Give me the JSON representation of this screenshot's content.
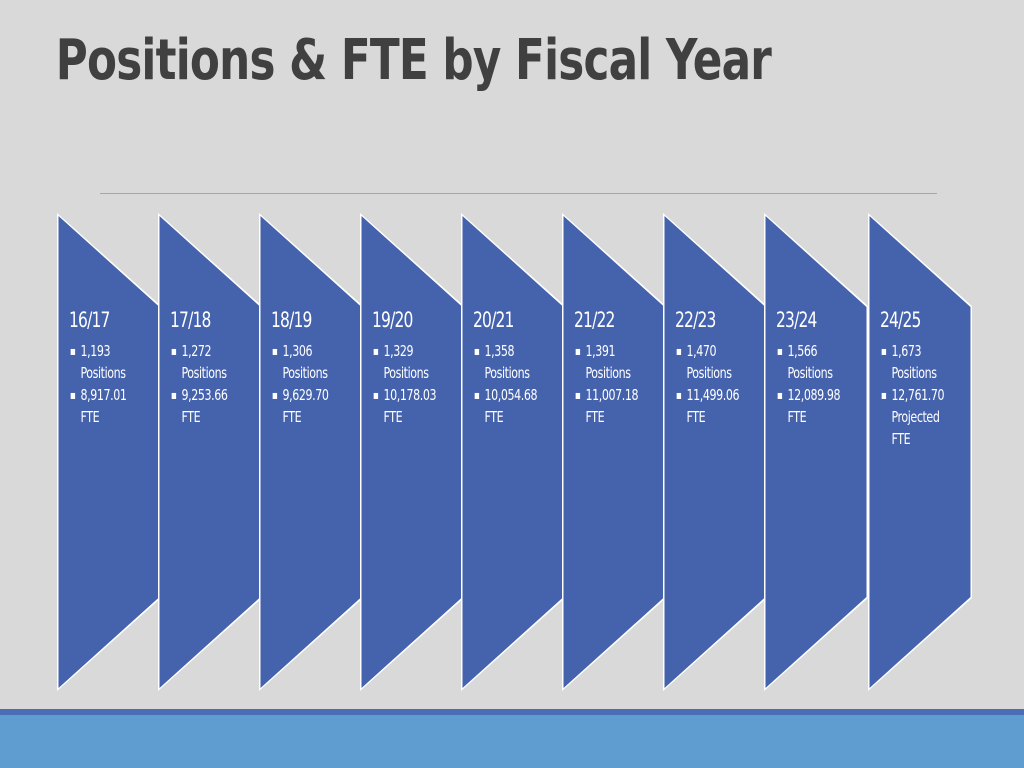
{
  "title": "Positions & FTE by Fiscal Year",
  "colors": {
    "background": "#d9d9d9",
    "chevron_fill": "#4562ad",
    "chevron_border": "#ffffff",
    "footer_dark": "#4a6db5",
    "footer_light": "#5f9dd1",
    "title_text": "#404040"
  },
  "years": [
    {
      "label": "16/17",
      "items": [
        [
          "1,193",
          "Positions"
        ],
        [
          "8,917.01",
          "FTE"
        ]
      ]
    },
    {
      "label": "17/18",
      "items": [
        [
          "1,272",
          "Positions"
        ],
        [
          "9,253.66",
          "FTE"
        ]
      ]
    },
    {
      "label": "18/19",
      "items": [
        [
          "1,306",
          "Positions"
        ],
        [
          "9,629.70",
          "FTE"
        ]
      ]
    },
    {
      "label": "19/20",
      "items": [
        [
          "1,329",
          "Positions"
        ],
        [
          "10,178.03",
          "FTE"
        ]
      ]
    },
    {
      "label": "20/21",
      "items": [
        [
          "1,358",
          "Positions"
        ],
        [
          "10,054.68",
          "FTE"
        ]
      ]
    },
    {
      "label": "21/22",
      "items": [
        [
          "1,391",
          "Positions"
        ],
        [
          "11,007.18",
          "FTE"
        ]
      ]
    },
    {
      "label": "22/23",
      "items": [
        [
          "1,470",
          "Positions"
        ],
        [
          "11,499.06",
          "FTE"
        ]
      ]
    },
    {
      "label": "23/24",
      "items": [
        [
          "1,566",
          "Positions"
        ],
        [
          "12,089.98",
          "FTE"
        ]
      ]
    },
    {
      "label": "24/25",
      "items": [
        [
          "1,673",
          "Positions"
        ],
        [
          " 12,761.70",
          "Projected",
          "FTE"
        ]
      ]
    }
  ]
}
